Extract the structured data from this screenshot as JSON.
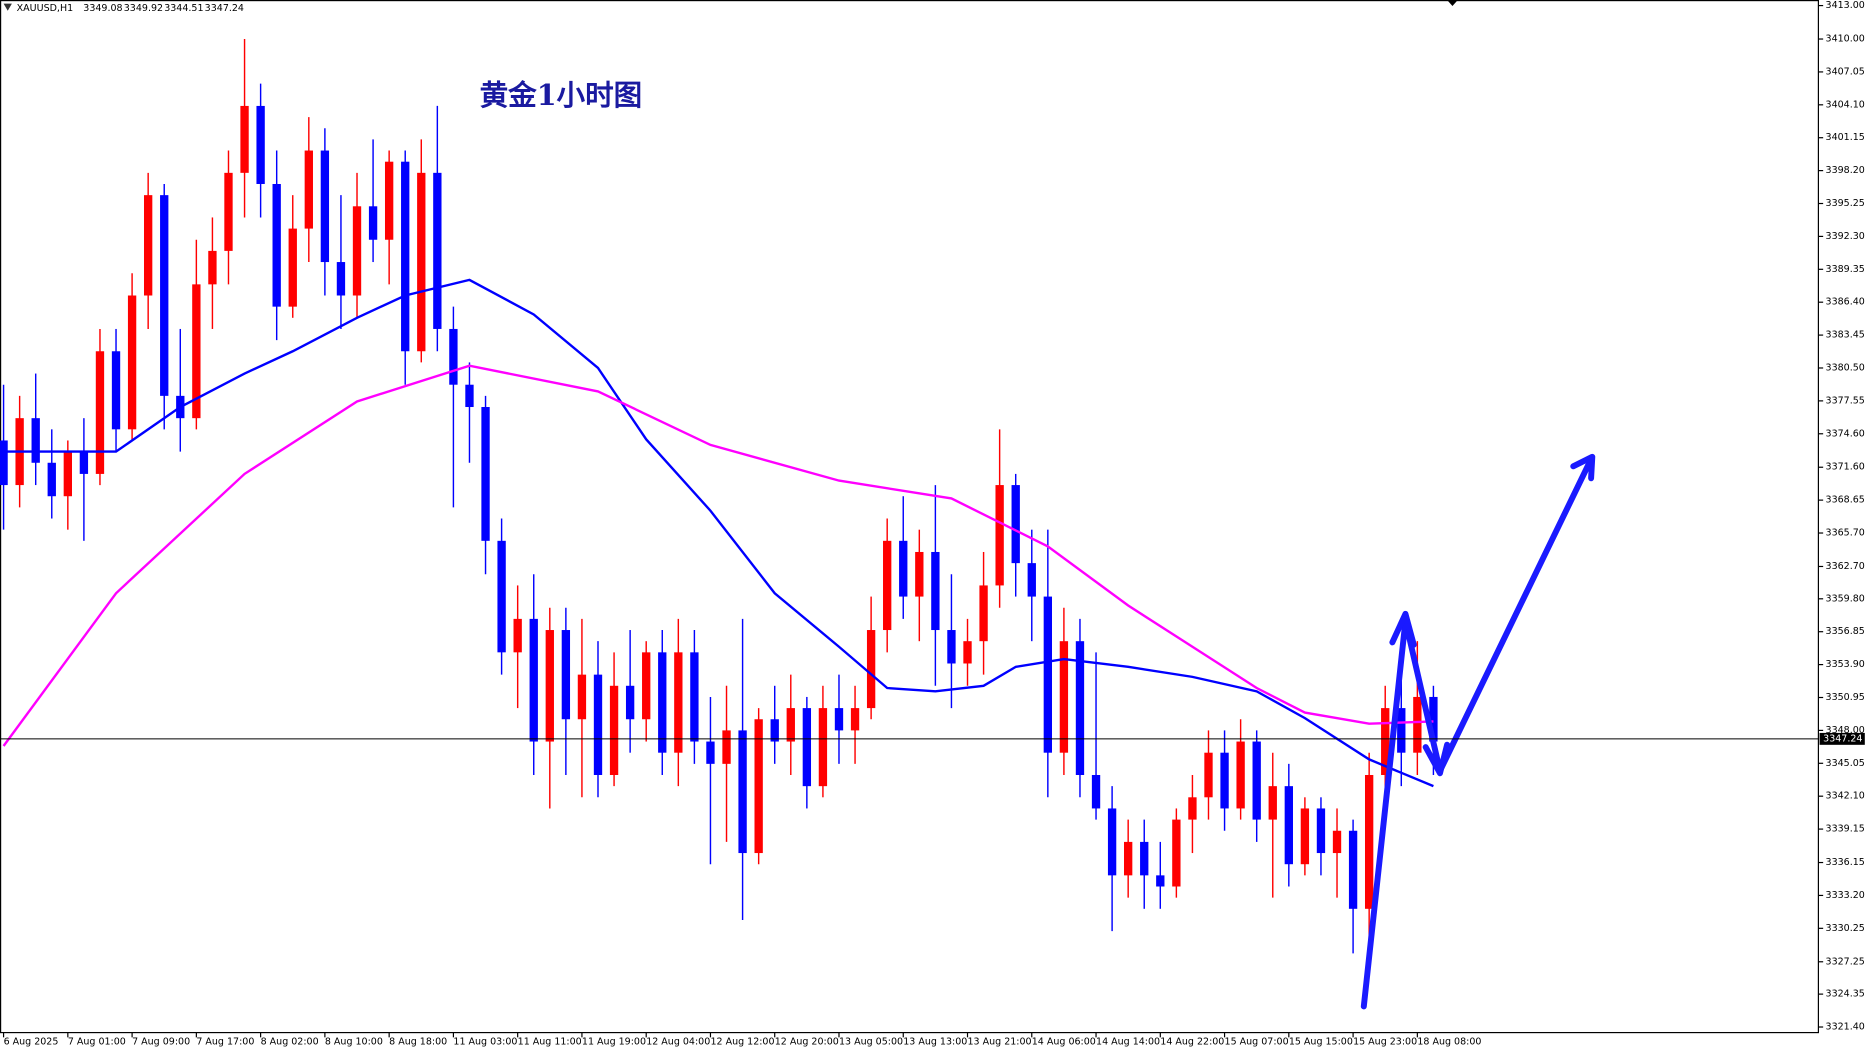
{
  "chart_data": {
    "type": "candlestick",
    "symbol": "XAUUSD,H1",
    "quote": {
      "open": 3349.08,
      "high": 3349.92,
      "low": 3344.51,
      "close": 3347.24
    },
    "title": "黄金1小时图",
    "current_price": 3347.24,
    "up_color": "#ff0000",
    "down_color": "#0000ff",
    "grid": false,
    "open": [
      3374,
      3370,
      3376,
      3372,
      3369,
      3373,
      3371,
      3382,
      3375,
      3387,
      3396,
      3378,
      3376,
      3388,
      3391,
      3398,
      3404,
      3397,
      3386,
      3393,
      3400,
      3390,
      3387,
      3395,
      3392,
      3399,
      3382,
      3398,
      3384,
      3379,
      3377,
      3365,
      3355,
      3358,
      3347,
      3357,
      3349,
      3353,
      3344,
      3352,
      3349,
      3355,
      3346,
      3355,
      3347,
      3345,
      3348,
      3337,
      3349,
      3347,
      3350,
      3343,
      3350,
      3348,
      3350,
      3357,
      3365,
      3360,
      3364,
      3357,
      3354,
      3356,
      3361,
      3370,
      3363,
      3360,
      3346,
      3356,
      3344,
      3341,
      3335,
      3338,
      3335,
      3334,
      3340,
      3342,
      3346,
      3341,
      3347,
      3340,
      3343,
      3336,
      3341,
      3337,
      3339,
      3332,
      3344,
      3350,
      3346,
      3351
    ],
    "high": [
      3379,
      3378,
      3380,
      3375,
      3374,
      3376,
      3384,
      3384,
      3389,
      3398,
      3397,
      3384,
      3392,
      3394,
      3400,
      3410,
      3406,
      3400,
      3396,
      3403,
      3402,
      3396,
      3398,
      3401,
      3400,
      3400,
      3401,
      3404,
      3386,
      3381,
      3378,
      3367,
      3361,
      3362,
      3359,
      3359,
      3358,
      3356,
      3355,
      3357,
      3356,
      3357,
      3358,
      3357,
      3351,
      3352,
      3358,
      3350,
      3352,
      3353,
      3351,
      3352,
      3353,
      3352,
      3360,
      3367,
      3369,
      3366,
      3370,
      3362,
      3358,
      3364,
      3375,
      3371,
      3366,
      3366,
      3359,
      3358,
      3355,
      3343,
      3340,
      3340,
      3338,
      3341,
      3344,
      3348,
      3348,
      3349,
      3348,
      3346,
      3345,
      3342,
      3342,
      3341,
      3340,
      3346,
      3352,
      3356,
      3356,
      3352
    ],
    "low": [
      3366,
      3368,
      3370,
      3367,
      3366,
      3365,
      3370,
      3373,
      3374,
      3384,
      3375,
      3373,
      3375,
      3384,
      3388,
      3394,
      3394,
      3383,
      3385,
      3390,
      3387,
      3384,
      3385,
      3390,
      3388,
      3379,
      3381,
      3382,
      3368,
      3372,
      3362,
      3353,
      3350,
      3344,
      3341,
      3344,
      3342,
      3342,
      3343,
      3346,
      3347,
      3344,
      3343,
      3345,
      3336,
      3338,
      3331,
      3336,
      3345,
      3344,
      3341,
      3342,
      3345,
      3345,
      3349,
      3355,
      3358,
      3356,
      3352,
      3350,
      3352,
      3353,
      3359,
      3360,
      3356,
      3342,
      3344,
      3342,
      3340,
      3330,
      3333,
      3332,
      3332,
      3333,
      3337,
      3340,
      3339,
      3340,
      3338,
      3333,
      3334,
      3335,
      3335,
      3333,
      3328,
      3327,
      3342,
      3343,
      3344,
      3344
    ],
    "close": [
      3370,
      3376,
      3372,
      3369,
      3373,
      3371,
      3382,
      3375,
      3387,
      3396,
      3378,
      3376,
      3388,
      3391,
      3398,
      3404,
      3397,
      3386,
      3393,
      3400,
      3390,
      3387,
      3395,
      3392,
      3399,
      3382,
      3398,
      3384,
      3379,
      3377,
      3365,
      3355,
      3358,
      3347,
      3357,
      3349,
      3353,
      3344,
      3352,
      3349,
      3355,
      3346,
      3355,
      3347,
      3345,
      3348,
      3337,
      3349,
      3347,
      3350,
      3343,
      3350,
      3348,
      3350,
      3357,
      3365,
      3360,
      3364,
      3357,
      3354,
      3356,
      3361,
      3370,
      3363,
      3360,
      3346,
      3356,
      3344,
      3341,
      3335,
      3338,
      3335,
      3334,
      3340,
      3342,
      3346,
      3341,
      3347,
      3340,
      3343,
      3336,
      3341,
      3337,
      3339,
      3332,
      3344,
      3350,
      3346,
      3351,
      3347
    ],
    "series": [
      {
        "color": "#0000ff",
        "x": [
          0,
          7,
          11,
          15,
          18,
          22,
          25,
          29,
          33,
          37,
          40,
          44,
          48,
          52,
          55,
          58,
          61,
          63,
          66,
          70,
          74,
          78,
          81,
          85,
          89
        ],
        "values": [
          3373,
          3373,
          3377,
          3380,
          3382,
          3385,
          3387,
          3388.4,
          3385.3,
          3380.5,
          3374.1,
          3367.7,
          3360.3,
          3355.5,
          3351.8,
          3351.5,
          3352,
          3353.7,
          3354.4,
          3353.7,
          3352.8,
          3351.5,
          3349.1,
          3345.4,
          3343
        ]
      },
      {
        "color": "#ff00ff",
        "x": [
          0,
          7,
          15,
          22,
          29,
          37,
          44,
          52,
          59,
          65,
          70,
          78,
          81,
          85,
          89
        ],
        "values": [
          3346.6,
          3360.3,
          3371,
          3377.5,
          3380.7,
          3378.4,
          3373.6,
          3370.4,
          3368.8,
          3364.5,
          3359.2,
          3351.8,
          3349.6,
          3348.6,
          3348.8
        ]
      }
    ],
    "ylim": [
      3320.9,
      3413.5
    ],
    "yticks": [
      {
        "value": 3321.4,
        "label": "3321.40"
      },
      3324.35,
      3327.25,
      3330.25,
      {
        "value": 3333.2,
        "label": "3333.20"
      },
      3336.15,
      3339.15,
      {
        "value": 3342.1,
        "label": "3342.10"
      },
      3345.05,
      {
        "value": 3348,
        "label": "3348.00"
      },
      3350.95,
      {
        "value": 3353.9,
        "label": "3353.90"
      },
      3356.85,
      {
        "value": 3359.8,
        "label": "3359.80"
      },
      {
        "value": 3362.7,
        "label": "3362.70"
      },
      {
        "value": 3365.7,
        "label": "3365.70"
      },
      3368.65,
      {
        "value": 3371.6,
        "label": "3371.60"
      },
      {
        "value": 3374.6,
        "label": "3374.60"
      },
      3377.55,
      {
        "value": 3380.5,
        "label": "3380.50"
      },
      3383.45,
      {
        "value": 3386.4,
        "label": "3386.40"
      },
      3389.35,
      {
        "value": 3392.3,
        "label": "3392.30"
      },
      3395.25,
      {
        "value": 3398.2,
        "label": "3398.20"
      },
      3401.15,
      {
        "value": 3404.1,
        "label": "3404.10"
      },
      3407.05,
      {
        "value": 3410,
        "label": "3410.00"
      },
      {
        "value": 3413,
        "label": "3413.00"
      }
    ],
    "xticks": [
      {
        "value": 0,
        "label": "6 Aug 2025"
      },
      {
        "value": 4,
        "label": "7 Aug 01:00"
      },
      {
        "value": 8,
        "label": "7 Aug 09:00"
      },
      {
        "value": 12,
        "label": "7 Aug 17:00"
      },
      {
        "value": 16,
        "label": "8 Aug 02:00"
      },
      {
        "value": 20,
        "label": "8 Aug 10:00"
      },
      {
        "value": 24,
        "label": "8 Aug 18:00"
      },
      {
        "value": 28,
        "label": "11 Aug 03:00"
      },
      {
        "value": 32,
        "label": "11 Aug 11:00"
      },
      {
        "value": 36,
        "label": "11 Aug 19:00"
      },
      {
        "value": 40,
        "label": "12 Aug 04:00"
      },
      {
        "value": 44,
        "label": "12 Aug 12:00"
      },
      {
        "value": 48,
        "label": "12 Aug 20:00"
      },
      {
        "value": 52,
        "label": "13 Aug 05:00"
      },
      {
        "value": 56,
        "label": "13 Aug 13:00"
      },
      {
        "value": 60,
        "label": "13 Aug 21:00"
      },
      {
        "value": 64,
        "label": "14 Aug 06:00"
      },
      {
        "value": 68,
        "label": "14 Aug 14:00"
      },
      {
        "value": 72,
        "label": "14 Aug 22:00"
      },
      {
        "value": 76,
        "label": "15 Aug 07:00"
      },
      {
        "value": 80,
        "label": "15 Aug 15:00"
      },
      {
        "value": 84,
        "label": "15 Aug 23:00"
      },
      {
        "value": 88,
        "label": "18 Aug 08:00"
      }
    ]
  }
}
